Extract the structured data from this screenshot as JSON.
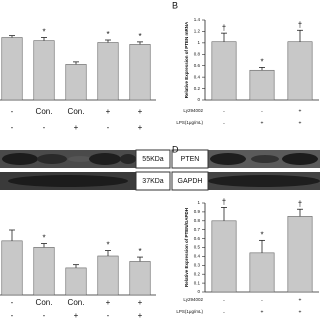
{
  "chart_data": [
    {
      "type": "bar",
      "ylim": [
        0,
        1.2
      ],
      "categories": [
        null,
        null,
        null,
        null,
        null
      ],
      "values": [
        1.0,
        0.95,
        0.57,
        0.92,
        0.89
      ],
      "errors": [
        0.03,
        0.05,
        0.04,
        0.04,
        0.04
      ],
      "color": "#c8c8c8",
      "annotations": [
        null,
        "*",
        null,
        "*",
        "*"
      ],
      "rows": [
        {
          "values": [
            "-",
            "Con.",
            "Con.",
            "+",
            "+"
          ]
        },
        {
          "values": [
            "-",
            "-",
            "+",
            "-",
            "+"
          ]
        }
      ]
    },
    {
      "type": "bar",
      "panel": "B",
      "ylabel": "Relative Expression of PTEN mRNA",
      "ylim": [
        0,
        1.4
      ],
      "yticks": [
        0,
        0.2,
        0.4,
        0.6,
        0.8,
        1,
        1.2,
        1.4
      ],
      "categories": [
        null,
        null,
        null
      ],
      "values": [
        1.02,
        0.52,
        1.02
      ],
      "errors": [
        0.15,
        0.05,
        0.2
      ],
      "color": "#c8c8c8",
      "annotations": [
        "†",
        "*",
        "†"
      ],
      "rows": [
        {
          "label": "Ly294002",
          "values": [
            "-",
            "-",
            "+"
          ]
        },
        {
          "label": "LPS(1μg/mL)",
          "values": [
            "-",
            "+",
            "+"
          ]
        }
      ]
    },
    {
      "type": "bar",
      "ylim": [
        0,
        1.2
      ],
      "categories": [
        null,
        null,
        null,
        null,
        null
      ],
      "values": [
        1.0,
        0.88,
        0.5,
        0.72,
        0.62
      ],
      "errors": [
        0.2,
        0.07,
        0.06,
        0.1,
        0.08
      ],
      "color": "#c8c8c8",
      "annotations": [
        null,
        "*",
        null,
        "*",
        "*"
      ],
      "blot_labels": [
        "55KDa",
        "37KDa"
      ],
      "rows": [
        {
          "values": [
            "-",
            "Con.",
            "Con.",
            "+",
            "+"
          ]
        },
        {
          "values": [
            "-",
            "-",
            "+",
            "-",
            "+"
          ]
        }
      ]
    },
    {
      "type": "bar",
      "panel": "D",
      "ylabel": "Relative Expression of PTEN/GAPDH",
      "ylim": [
        0,
        1
      ],
      "yticks": [
        0,
        0.1,
        0.2,
        0.3,
        0.4,
        0.5,
        0.6,
        0.7,
        0.8,
        0.9,
        1
      ],
      "categories": [
        null,
        null,
        null
      ],
      "values": [
        0.8,
        0.44,
        0.85
      ],
      "errors": [
        0.15,
        0.14,
        0.08
      ],
      "color": "#c8c8c8",
      "annotations": [
        "†",
        "*",
        "†"
      ],
      "blot_labels": [
        "PTEN",
        "GAPDH"
      ],
      "rows": [
        {
          "label": "Ly294002",
          "values": [
            "-",
            "-",
            "+"
          ]
        },
        {
          "label": "LPS(1μg/mL)",
          "values": [
            "-",
            "+",
            "+"
          ]
        }
      ]
    }
  ]
}
